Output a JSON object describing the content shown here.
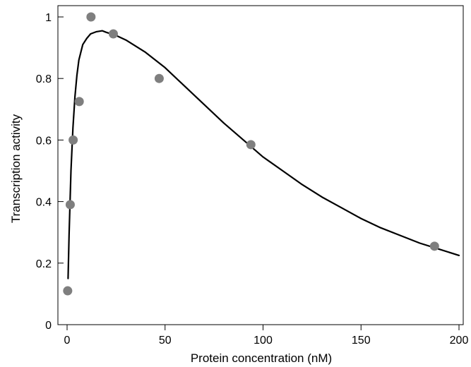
{
  "chart_data": {
    "type": "scatter",
    "title": "",
    "xlabel": "Protein  concentration (nM)",
    "ylabel": "Transcription  activity",
    "xlim": [
      0,
      200
    ],
    "ylim": [
      0,
      1
    ],
    "x_ticks": [
      0,
      50,
      100,
      150,
      200
    ],
    "y_ticks": [
      0,
      0.2,
      0.4,
      0.6,
      0.8,
      1
    ],
    "x_tick_labels": [
      "0",
      "50",
      "100",
      "150",
      "200"
    ],
    "y_tick_labels": [
      "0",
      "0.2",
      "0.4",
      "0.6",
      "0.8",
      "1"
    ],
    "grid": false,
    "legend": "none",
    "series": [
      {
        "kind": "points",
        "color": "#7f7f7f",
        "x": [
          0.3,
          1.6,
          3.1,
          6.2,
          12.2,
          23.6,
          47.0,
          93.8,
          187.5
        ],
        "y": [
          0.11,
          0.39,
          0.6,
          0.725,
          1.0,
          0.945,
          0.8,
          0.585,
          0.255
        ]
      },
      {
        "kind": "fitted-curve",
        "color": "#000000",
        "x": [
          0.5,
          1,
          2,
          3,
          4,
          5,
          6,
          8,
          10,
          12,
          15,
          18,
          20,
          25,
          30,
          40,
          50,
          60,
          70,
          80,
          90,
          100,
          110,
          120,
          130,
          140,
          150,
          160,
          170,
          180,
          190,
          200
        ],
        "y": [
          0.15,
          0.29,
          0.5,
          0.64,
          0.74,
          0.81,
          0.86,
          0.91,
          0.93,
          0.945,
          0.952,
          0.955,
          0.95,
          0.94,
          0.925,
          0.885,
          0.835,
          0.775,
          0.715,
          0.655,
          0.6,
          0.545,
          0.5,
          0.455,
          0.415,
          0.38,
          0.345,
          0.315,
          0.29,
          0.265,
          0.245,
          0.225
        ]
      }
    ]
  }
}
